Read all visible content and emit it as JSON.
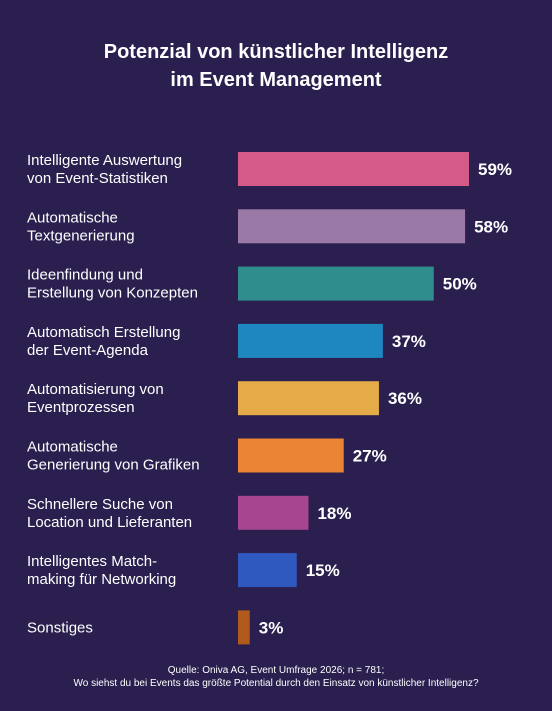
{
  "title": {
    "line1": "Potenzial von künstlicher Intelligenz",
    "line2": "im Event Management"
  },
  "footer": {
    "source": "Quelle: Oniva AG, Event Umfrage 2026; n = 781;",
    "question": "Wo siehst du bei Events das größte Potential durch den Einsatz von künstlicher Intelligenz?"
  },
  "chart_data": {
    "type": "bar",
    "orientation": "horizontal",
    "unit": "%",
    "categories": [
      [
        "Intelligente Auswertung",
        "von Event-Statistiken"
      ],
      [
        "Automatische",
        "Textgenerierung"
      ],
      [
        "Ideenfindung und",
        "Erstellung von Konzepten"
      ],
      [
        "Automatisch Erstellung",
        "der Event-Agenda"
      ],
      [
        "Automatisierung von",
        "Eventprozessen"
      ],
      [
        "Automatische",
        "Generierung von Grafiken"
      ],
      [
        "Schnellere Suche von",
        "Location und Lieferanten"
      ],
      [
        "Intelligentes Match-",
        "making für Networking"
      ],
      [
        "Sonstiges"
      ]
    ],
    "values": [
      59,
      58,
      50,
      37,
      36,
      27,
      18,
      15,
      3
    ],
    "value_labels": [
      "59%",
      "58%",
      "50%",
      "37%",
      "36%",
      "27%",
      "18%",
      "15%",
      "3%"
    ],
    "colors": [
      "#d45a88",
      "#9a79a6",
      "#2f8d8d",
      "#1f87c0",
      "#e4ab48",
      "#ea8534",
      "#a64690",
      "#3059c0",
      "#b05a1c"
    ],
    "xlim": [
      0,
      59
    ],
    "grid": false,
    "legend": "none"
  }
}
